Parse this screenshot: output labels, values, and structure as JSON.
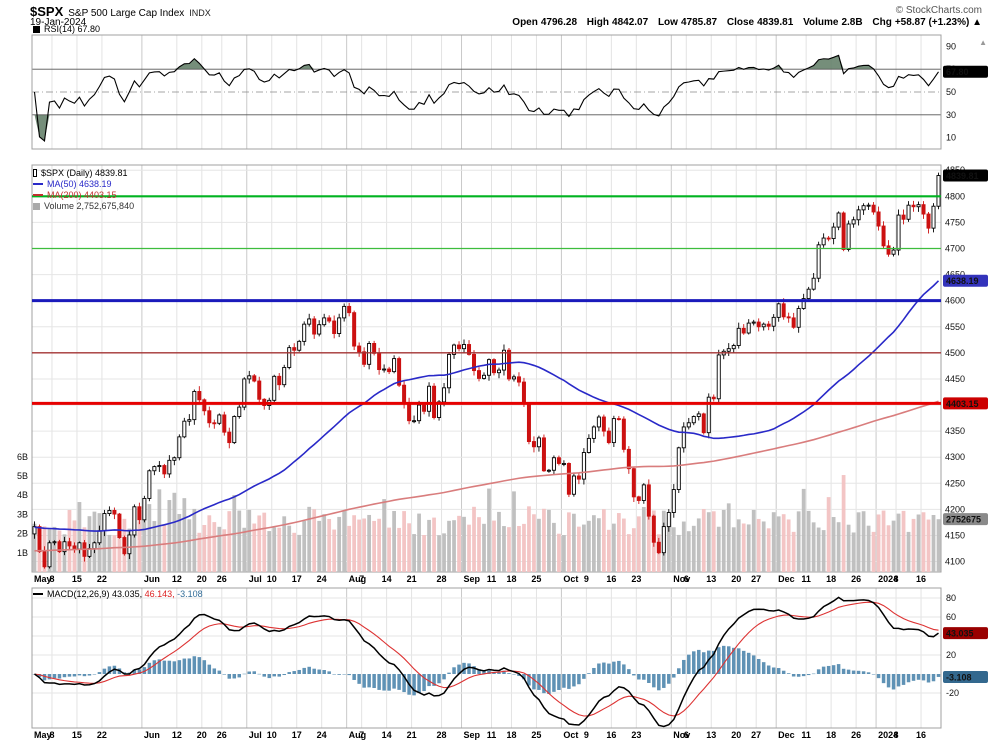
{
  "header": {
    "symbol": "$SPX",
    "name": "S&P 500 Large Cap Index",
    "exchange": "INDX",
    "copyright": "© StockCharts.com",
    "date": "19-Jan-2024",
    "quote": {
      "open_label": "Open",
      "open": "4796.28",
      "high_label": "High",
      "high": "4842.07",
      "low_label": "Low",
      "low": "4785.87",
      "close_label": "Close",
      "close": "4839.81",
      "volume_label": "Volume",
      "volume": "2.8B",
      "chg_label": "Chg",
      "chg": "+58.87 (+1.23%)",
      "arrow": "▲"
    }
  },
  "rsi": {
    "legend": "RSI(14) 67.80",
    "value": 67.8,
    "badge": {
      "text": "67.80",
      "value": 67.8,
      "bg": "#000000"
    },
    "axis": [
      90,
      70,
      50,
      30,
      10
    ],
    "levels": {
      "overbought": 70,
      "mid": 50,
      "oversold": 30
    }
  },
  "main": {
    "legend_spx": "$SPX (Daily) 4839.81",
    "legend_ma50": "MA(50) 4638.19",
    "legend_ma200": "MA(200) 4403.15",
    "legend_volume": "Volume 2,752,675,840"
  },
  "macd": {
    "legend_name": "MACD(12,26,9)",
    "macd_text": "43.035,",
    "signal_text": "46.143,",
    "hist_text": "-3.108",
    "axis": [
      80,
      60,
      40,
      20,
      -20
    ],
    "badges": [
      {
        "text": "43.035",
        "value": 43.035,
        "bg": "#990000"
      },
      {
        "text": "-3.108",
        "value": -3.108,
        "bg": "#33688e"
      }
    ]
  },
  "colors": {
    "down_candle": "#cc1111",
    "up_candle": "#000000",
    "ma50": "#2929c8",
    "ma200": "#d97d7d",
    "vol_up": "#bdbdbd",
    "vol_down": "#f2c2c2",
    "rsi_fill": "#5d7a63",
    "hist": "#5f92b5",
    "signal_line": "#dd3333",
    "macd_line": "#000000"
  },
  "chart_data": {
    "type": "candlestick",
    "title": "$SPX S&P 500 Large Cap Index (Daily) with RSI(14), MA(50), MA(200), Volume and MACD(12,26,9)",
    "x_span": "May 2023 to 19-Jan-2024, daily bars",
    "last_bar": {
      "open": 4796.28,
      "high": 4842.07,
      "low": 4785.87,
      "close": 4839.81,
      "volume": "2.8B",
      "change": "+58.87 (+1.23%)"
    },
    "close": [
      4167,
      4119,
      4090,
      4136,
      4138,
      4119,
      4138,
      4130,
      4124,
      4136,
      4110,
      4125,
      4136,
      4159,
      4192,
      4198,
      4191,
      4146,
      4115,
      4151,
      4205,
      4180,
      4221,
      4274,
      4282,
      4284,
      4268,
      4294,
      4299,
      4339,
      4369,
      4372,
      4426,
      4410,
      4389,
      4366,
      4365,
      4381,
      4348,
      4328,
      4378,
      4396,
      4450,
      4456,
      4446,
      4411,
      4399,
      4409,
      4455,
      4439,
      4472,
      4510,
      4505,
      4522,
      4555,
      4565,
      4536,
      4554,
      4567,
      4561,
      4537,
      4567,
      4589,
      4577,
      4513,
      4502,
      4478,
      4518,
      4499,
      4468,
      4469,
      4464,
      4489,
      4438,
      4404,
      4370,
      4370,
      4400,
      4388,
      4436,
      4376,
      4406,
      4433,
      4497,
      4515,
      4508,
      4516,
      4497,
      4466,
      4451,
      4457,
      4487,
      4462,
      4467,
      4505,
      4450,
      4454,
      4444,
      4402,
      4330,
      4320,
      4337,
      4274,
      4275,
      4299,
      4288,
      4288,
      4229,
      4264,
      4258,
      4309,
      4336,
      4358,
      4377,
      4350,
      4328,
      4374,
      4373,
      4315,
      4278,
      4224,
      4217,
      4247,
      4187,
      4137,
      4117,
      4167,
      4194,
      4238,
      4318,
      4358,
      4366,
      4378,
      4383,
      4347,
      4415,
      4412,
      4496,
      4503,
      4508,
      4514,
      4547,
      4538,
      4557,
      4559,
      4550,
      4555,
      4551,
      4568,
      4594,
      4569,
      4567,
      4549,
      4585,
      4604,
      4622,
      4643,
      4707,
      4720,
      4719,
      4741,
      4768,
      4698,
      4747,
      4755,
      4774,
      4782,
      4783,
      4770,
      4743,
      4705,
      4689,
      4697,
      4764,
      4756,
      4783,
      4780,
      4784,
      4766,
      4739,
      4781,
      4839.81
    ],
    "x_ticks": [
      {
        "label": "May",
        "i": 0
      },
      {
        "label": "8",
        "i": 4
      },
      {
        "label": "15",
        "i": 9
      },
      {
        "label": "22",
        "i": 14
      },
      {
        "label": "Jun",
        "i": 22
      },
      {
        "label": "12",
        "i": 29
      },
      {
        "label": "20",
        "i": 34
      },
      {
        "label": "26",
        "i": 38
      },
      {
        "label": "Jul",
        "i": 43
      },
      {
        "label": "10",
        "i": 48
      },
      {
        "label": "17",
        "i": 53
      },
      {
        "label": "24",
        "i": 58
      },
      {
        "label": "Aug",
        "i": 63
      },
      {
        "label": "7",
        "i": 66
      },
      {
        "label": "14",
        "i": 71
      },
      {
        "label": "21",
        "i": 76
      },
      {
        "label": "28",
        "i": 82
      },
      {
        "label": "Sep",
        "i": 86
      },
      {
        "label": "11",
        "i": 92
      },
      {
        "label": "18",
        "i": 96
      },
      {
        "label": "25",
        "i": 101
      },
      {
        "label": "Oct",
        "i": 106
      },
      {
        "label": "9",
        "i": 111
      },
      {
        "label": "16",
        "i": 116
      },
      {
        "label": "23",
        "i": 121
      },
      {
        "label": "Nov",
        "i": 128
      },
      {
        "label": "6",
        "i": 131
      },
      {
        "label": "13",
        "i": 136
      },
      {
        "label": "20",
        "i": 141
      },
      {
        "label": "27",
        "i": 145
      },
      {
        "label": "Dec",
        "i": 149
      },
      {
        "label": "11",
        "i": 155
      },
      {
        "label": "18",
        "i": 160
      },
      {
        "label": "26",
        "i": 165
      },
      {
        "label": "2024",
        "i": 169
      },
      {
        "label": "8",
        "i": 173
      },
      {
        "label": "16",
        "i": 178
      }
    ],
    "price_axis": {
      "min": 4080,
      "max": 4860,
      "tick_step": 50
    },
    "price_ticks": [
      4850,
      4800,
      4750,
      4700,
      4650,
      4600,
      4550,
      4500,
      4450,
      4400,
      4350,
      4300,
      4250,
      4200,
      4150,
      4100
    ],
    "volume_axis_labels": [
      "6B",
      "5B",
      "4B",
      "3B",
      "2B",
      "1B"
    ],
    "overlay_lines": [
      {
        "price": 4800,
        "color": "#00b321",
        "width": 2.2
      },
      {
        "price": 4700,
        "color": "#3dbd3d",
        "width": 1.2
      },
      {
        "price": 4600,
        "color": "#1a1abb",
        "width": 3
      },
      {
        "price": 4500,
        "color": "#a33333",
        "width": 1.4
      },
      {
        "price": 4403.15,
        "color": "#e60000",
        "width": 3
      }
    ],
    "price_badges": [
      {
        "text": "4839.81",
        "price": 4839.81,
        "bg": "#000000"
      },
      {
        "text": "4638.19",
        "price": 4638.19,
        "bg": "#3333bb"
      },
      {
        "text": "4403.15",
        "price": 4403.15,
        "bg": "#cc0000"
      },
      {
        "text": "2752675",
        "volume_b": 2.752675,
        "bg": "#8a8a8a"
      }
    ],
    "indicators": {
      "rsi": {
        "period": 14,
        "last": 67.8
      },
      "ma50": {
        "period": 50,
        "last": 4638.19
      },
      "ma200": {
        "period": 200,
        "last": 4403.15
      },
      "macd": {
        "fast": 12,
        "slow": 26,
        "signal": 9,
        "last_macd": 43.035,
        "last_signal": 46.143,
        "last_hist": -3.108
      },
      "volume": {
        "last": "2,752,675,840"
      }
    }
  }
}
